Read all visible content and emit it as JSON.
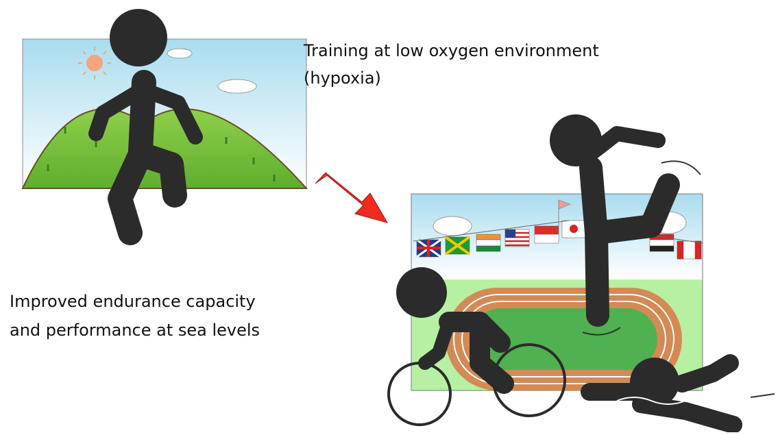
{
  "labels": [
    {
      "lines": [
        "Training at low oxygen environment",
        "(hypoxia)"
      ]
    },
    {
      "lines": [
        "Improved endurance capacity",
        "and performance at sea levels"
      ]
    }
  ]
}
